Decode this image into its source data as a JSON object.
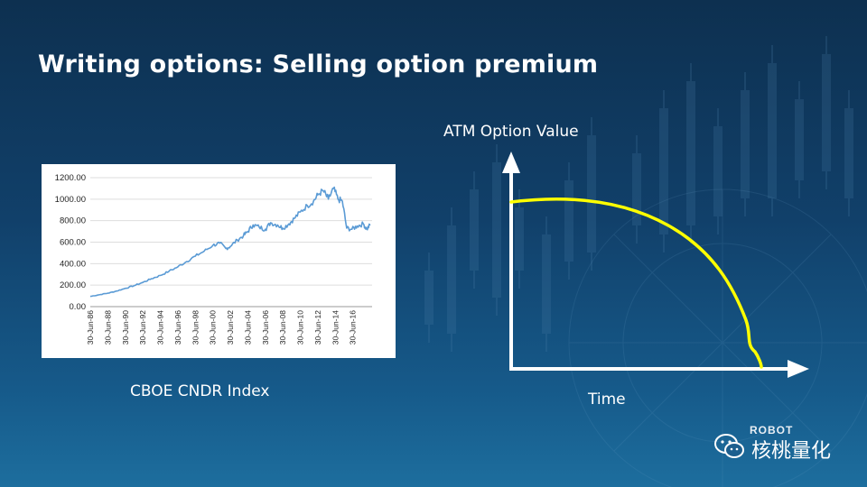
{
  "title": "Writing options: Selling option premium",
  "colors": {
    "series": "#5b9bd5",
    "curve": "#ffff00",
    "axes": "#ffffff"
  },
  "chart_data": [
    {
      "type": "line",
      "caption": "CBOE CNDR Index",
      "x_ticks": [
        "30-Jun-86",
        "30-Jun-88",
        "30-Jun-90",
        "30-Jun-92",
        "30-Jun-94",
        "30-Jun-96",
        "30-Jun-98",
        "30-Jun-00",
        "30-Jun-02",
        "30-Jun-04",
        "30-Jun-06",
        "30-Jun-08",
        "30-Jun-10",
        "30-Jun-12",
        "30-Jun-14",
        "30-Jun-16"
      ],
      "y_ticks": [
        "0.00",
        "200.00",
        "400.00",
        "600.00",
        "800.00",
        "1000.00",
        "1200.00"
      ],
      "ylim": [
        0,
        1200
      ],
      "xlim": [
        1986,
        2018.2
      ],
      "grid": true,
      "series": [
        {
          "x": [
            1986,
            1987,
            1988,
            1989,
            1990,
            1991,
            1992,
            1993,
            1994,
            1995,
            1996,
            1997,
            1998,
            1999,
            2000,
            2000.8,
            2001.5,
            2002,
            2002.8,
            2003.5,
            2004,
            2004.6,
            2005.3,
            2006,
            2006.6,
            2007.4,
            2008,
            2008.7,
            2009.3,
            2010,
            2010.8,
            2011.5,
            2012,
            2012.6,
            2013.2,
            2013.8,
            2014.3,
            2014.8,
            2015.3,
            2015.9,
            2016.5,
            2017.2,
            2017.6,
            2018
          ],
          "y": [
            95,
            110,
            125,
            145,
            170,
            195,
            225,
            260,
            290,
            330,
            370,
            420,
            470,
            515,
            570,
            590,
            540,
            560,
            620,
            660,
            700,
            760,
            740,
            720,
            780,
            760,
            730,
            770,
            820,
            880,
            940,
            980,
            1040,
            1080,
            1000,
            1100,
            1000,
            980,
            730,
            720,
            750,
            770,
            720,
            765
          ]
        }
      ]
    },
    {
      "type": "line",
      "xlabel": "Time",
      "ylabel": "ATM Option Value"
    }
  ],
  "brand": {
    "robot": "ROBOT",
    "name": "核桃量化"
  }
}
